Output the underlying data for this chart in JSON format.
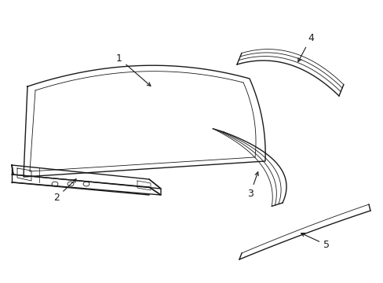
{
  "background_color": "#ffffff",
  "line_color": "#1a1a1a",
  "figsize": [
    4.89,
    3.6
  ],
  "dpi": 100,
  "parts": {
    "roof_panel": {
      "label": "1"
    },
    "front_bar": {
      "label": "2"
    },
    "mid_molding": {
      "label": "3"
    },
    "top_molding": {
      "label": "4"
    },
    "long_strip": {
      "label": "5"
    }
  }
}
